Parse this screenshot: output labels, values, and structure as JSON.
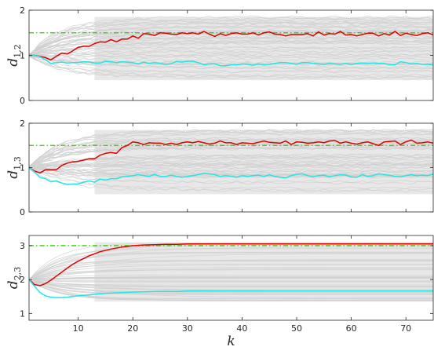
{
  "chart_data": [
    {
      "type": "line",
      "id": "p1",
      "ylabel_main": "d",
      "ylabel_sub": "1,2",
      "xlim": [
        1,
        75
      ],
      "ylim": [
        0,
        2
      ],
      "yticks": [
        0,
        1,
        2
      ],
      "xticks": [],
      "reference_line": {
        "y": 1.5,
        "color": "#33cc00",
        "style": "dash-dot"
      },
      "background_color": "#d6d6d6",
      "background_band": [
        0.45,
        1.85
      ],
      "series": [
        {
          "color": "#e00000",
          "x": [
            1,
            2,
            3,
            4,
            5,
            6,
            7,
            8,
            9,
            10,
            11,
            12,
            13,
            14,
            15,
            16,
            17,
            18,
            19,
            20,
            21,
            22,
            23,
            24,
            25,
            26,
            27,
            28,
            29,
            30,
            31,
            32,
            33,
            34,
            35,
            36,
            37,
            38,
            39,
            40,
            41,
            42,
            43,
            44,
            45,
            46,
            47,
            48,
            49,
            50,
            51,
            52,
            53,
            54,
            55,
            56,
            57,
            58,
            59,
            60,
            61,
            62,
            63,
            64,
            65,
            66,
            67,
            68,
            69,
            70,
            71,
            72,
            73,
            74,
            75
          ],
          "values": [
            1.0,
            1.0,
            0.98,
            0.95,
            0.9,
            0.98,
            1.05,
            1.03,
            1.1,
            1.18,
            1.2,
            1.2,
            1.26,
            1.3,
            1.29,
            1.35,
            1.3,
            1.36,
            1.36,
            1.43,
            1.38,
            1.48,
            1.47,
            1.44,
            1.5,
            1.49,
            1.47,
            1.46,
            1.5,
            1.48,
            1.5,
            1.47,
            1.53,
            1.47,
            1.42,
            1.48,
            1.44,
            1.48,
            1.5,
            1.47,
            1.47,
            1.5,
            1.45,
            1.5,
            1.52,
            1.47,
            1.46,
            1.43,
            1.46,
            1.46,
            1.46,
            1.48,
            1.43,
            1.52,
            1.45,
            1.48,
            1.47,
            1.53,
            1.45,
            1.46,
            1.43,
            1.46,
            1.49,
            1.49,
            1.43,
            1.48,
            1.45,
            1.53,
            1.44,
            1.49,
            1.46,
            1.44,
            1.48,
            1.5,
            1.45
          ]
        },
        {
          "color": "#22e6e6",
          "x": [
            1,
            2,
            3,
            4,
            5,
            6,
            7,
            8,
            9,
            10,
            11,
            12,
            13,
            14,
            15,
            16,
            17,
            18,
            19,
            20,
            21,
            22,
            23,
            24,
            25,
            26,
            27,
            28,
            29,
            30,
            31,
            32,
            33,
            34,
            35,
            36,
            37,
            38,
            39,
            40,
            41,
            42,
            43,
            44,
            45,
            46,
            47,
            48,
            49,
            50,
            51,
            52,
            53,
            54,
            55,
            56,
            57,
            58,
            59,
            60,
            61,
            62,
            63,
            64,
            65,
            66,
            67,
            68,
            69,
            70,
            71,
            72,
            73,
            74,
            75
          ],
          "values": [
            1.0,
            1.0,
            0.97,
            0.9,
            0.82,
            0.84,
            0.85,
            0.83,
            0.84,
            0.84,
            0.86,
            0.85,
            0.83,
            0.83,
            0.87,
            0.86,
            0.84,
            0.86,
            0.85,
            0.84,
            0.81,
            0.85,
            0.82,
            0.84,
            0.82,
            0.8,
            0.81,
            0.87,
            0.85,
            0.87,
            0.87,
            0.84,
            0.79,
            0.81,
            0.81,
            0.77,
            0.77,
            0.79,
            0.79,
            0.81,
            0.8,
            0.78,
            0.81,
            0.79,
            0.8,
            0.82,
            0.84,
            0.84,
            0.82,
            0.8,
            0.84,
            0.84,
            0.82,
            0.81,
            0.8,
            0.82,
            0.81,
            0.8,
            0.82,
            0.8,
            0.82,
            0.83,
            0.82,
            0.83,
            0.82,
            0.82,
            0.79,
            0.79,
            0.86,
            0.84,
            0.81,
            0.82,
            0.8,
            0.8,
            0.79
          ]
        }
      ]
    },
    {
      "type": "line",
      "id": "p2",
      "ylabel_main": "d",
      "ylabel_sub": "1,3",
      "xlim": [
        1,
        75
      ],
      "ylim": [
        0,
        2
      ],
      "yticks": [
        0,
        1,
        2
      ],
      "xticks": [],
      "reference_line": {
        "y": 1.5,
        "color": "#33cc00",
        "style": "dash-dot"
      },
      "background_color": "#d6d6d6",
      "background_band": [
        0.4,
        1.85
      ],
      "series": [
        {
          "color": "#e00000",
          "x": [
            1,
            2,
            3,
            4,
            5,
            6,
            7,
            8,
            9,
            10,
            11,
            12,
            13,
            14,
            15,
            16,
            17,
            18,
            19,
            20,
            21,
            22,
            23,
            24,
            25,
            26,
            27,
            28,
            29,
            30,
            31,
            32,
            33,
            34,
            35,
            36,
            37,
            38,
            39,
            40,
            41,
            42,
            43,
            44,
            45,
            46,
            47,
            48,
            49,
            50,
            51,
            52,
            53,
            54,
            55,
            56,
            57,
            58,
            59,
            60,
            61,
            62,
            63,
            64,
            65,
            66,
            67,
            68,
            69,
            70,
            71,
            72,
            73,
            74,
            75
          ],
          "values": [
            1.0,
            0.92,
            0.88,
            0.95,
            0.95,
            0.95,
            1.05,
            1.1,
            1.13,
            1.14,
            1.17,
            1.2,
            1.2,
            1.28,
            1.32,
            1.34,
            1.32,
            1.45,
            1.5,
            1.58,
            1.56,
            1.52,
            1.56,
            1.55,
            1.55,
            1.52,
            1.55,
            1.52,
            1.56,
            1.58,
            1.56,
            1.59,
            1.56,
            1.53,
            1.55,
            1.6,
            1.56,
            1.56,
            1.52,
            1.56,
            1.55,
            1.54,
            1.57,
            1.6,
            1.57,
            1.56,
            1.55,
            1.6,
            1.52,
            1.58,
            1.57,
            1.55,
            1.56,
            1.58,
            1.56,
            1.6,
            1.61,
            1.55,
            1.58,
            1.55,
            1.53,
            1.56,
            1.58,
            1.54,
            1.5,
            1.58,
            1.59,
            1.6,
            1.52,
            1.58,
            1.62,
            1.55,
            1.56,
            1.58,
            1.55
          ]
        },
        {
          "color": "#22e6e6",
          "x": [
            1,
            2,
            3,
            4,
            5,
            6,
            7,
            8,
            9,
            10,
            11,
            12,
            13,
            14,
            15,
            16,
            17,
            18,
            19,
            20,
            21,
            22,
            23,
            24,
            25,
            26,
            27,
            28,
            29,
            30,
            31,
            32,
            33,
            34,
            35,
            36,
            37,
            38,
            39,
            40,
            41,
            42,
            43,
            44,
            45,
            46,
            47,
            48,
            49,
            50,
            51,
            52,
            53,
            54,
            55,
            56,
            57,
            58,
            59,
            60,
            61,
            62,
            63,
            64,
            65,
            66,
            67,
            68,
            69,
            70,
            71,
            72,
            73,
            74,
            75
          ],
          "values": [
            1.0,
            0.9,
            0.78,
            0.75,
            0.68,
            0.7,
            0.65,
            0.62,
            0.63,
            0.63,
            0.67,
            0.7,
            0.67,
            0.74,
            0.72,
            0.75,
            0.75,
            0.79,
            0.8,
            0.82,
            0.84,
            0.82,
            0.8,
            0.85,
            0.8,
            0.8,
            0.83,
            0.8,
            0.78,
            0.8,
            0.82,
            0.84,
            0.87,
            0.86,
            0.84,
            0.8,
            0.82,
            0.8,
            0.78,
            0.82,
            0.8,
            0.82,
            0.83,
            0.8,
            0.84,
            0.8,
            0.78,
            0.77,
            0.82,
            0.85,
            0.86,
            0.82,
            0.79,
            0.82,
            0.83,
            0.79,
            0.82,
            0.84,
            0.83,
            0.79,
            0.78,
            0.84,
            0.8,
            0.82,
            0.86,
            0.84,
            0.83,
            0.8,
            0.79,
            0.82,
            0.84,
            0.82,
            0.83,
            0.82,
            0.85
          ]
        }
      ]
    },
    {
      "type": "line",
      "id": "p3",
      "ylabel_main": "d",
      "ylabel_sub": "2,3",
      "xlabel": "k",
      "xlim": [
        1,
        75
      ],
      "ylim": [
        0.8,
        3.3
      ],
      "yticks": [
        1,
        2,
        3
      ],
      "xticks": [
        10,
        20,
        30,
        40,
        50,
        60,
        70
      ],
      "reference_line": {
        "y": 3.0,
        "color": "#33cc00",
        "style": "dash-dot"
      },
      "background_color": "#d6d6d6",
      "background_band": [
        1.35,
        3.1
      ],
      "series": [
        {
          "color": "#e00000",
          "x": [
            1,
            2,
            3,
            4,
            5,
            6,
            7,
            8,
            9,
            10,
            12,
            14,
            16,
            18,
            20,
            22,
            24,
            26,
            28,
            30,
            35,
            40,
            45,
            50,
            55,
            60,
            65,
            70,
            75
          ],
          "values": [
            2.0,
            1.85,
            1.82,
            1.88,
            1.98,
            2.1,
            2.22,
            2.34,
            2.45,
            2.54,
            2.7,
            2.82,
            2.9,
            2.96,
            3.0,
            3.02,
            3.03,
            3.04,
            3.04,
            3.05,
            3.05,
            3.05,
            3.05,
            3.05,
            3.05,
            3.05,
            3.05,
            3.05,
            3.05
          ]
        },
        {
          "color": "#22e6e6",
          "x": [
            1,
            2,
            3,
            4,
            5,
            6,
            7,
            8,
            9,
            10,
            12,
            14,
            16,
            18,
            20,
            22,
            24,
            26,
            28,
            30,
            35,
            40,
            45,
            50,
            55,
            60,
            65,
            70,
            75
          ],
          "values": [
            2.0,
            1.8,
            1.62,
            1.52,
            1.48,
            1.47,
            1.47,
            1.48,
            1.5,
            1.52,
            1.55,
            1.58,
            1.6,
            1.62,
            1.63,
            1.64,
            1.65,
            1.65,
            1.65,
            1.66,
            1.66,
            1.66,
            1.66,
            1.66,
            1.66,
            1.66,
            1.66,
            1.66,
            1.66
          ]
        }
      ]
    }
  ]
}
